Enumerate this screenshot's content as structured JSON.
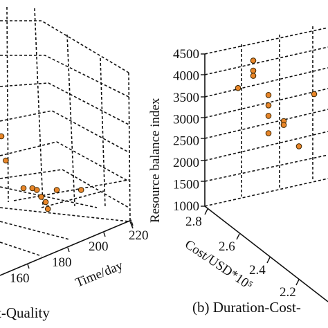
{
  "chart_data": [
    {
      "type": "scatter",
      "subtitle": "t-Quality",
      "xlabel": "Time/day",
      "x_ticks": [
        "160",
        "180",
        "200",
        "220"
      ],
      "points": [
        {
          "x": 150,
          "z": 0.42
        },
        {
          "x": 152,
          "z": 0.28
        },
        {
          "x": 160,
          "z": 0.12
        },
        {
          "x": 164,
          "z": 0.12
        },
        {
          "x": 166,
          "z": 0.11
        },
        {
          "x": 175,
          "z": 0.11
        },
        {
          "x": 186,
          "z": 0.11
        },
        {
          "x": 168,
          "z": 0.07
        },
        {
          "x": 170,
          "z": 0.04
        },
        {
          "x": 171,
          "z": 0.0
        }
      ],
      "grid": true
    },
    {
      "type": "scatter",
      "subtitle": "(b) Duration-Cost-",
      "zlabel": "Resource balance index",
      "z_ticks": [
        "1000",
        "1500",
        "2000",
        "2500",
        "3000",
        "3500",
        "4000",
        "4500"
      ],
      "zlim": [
        1000,
        4500
      ],
      "ylabel": "Cost/USD*10⁵",
      "y_ticks": [
        "2.8",
        "2.6",
        "2.4",
        "2.2"
      ],
      "points": [
        {
          "y": 2.5,
          "z": 4570
        },
        {
          "y": 2.5,
          "z": 4340
        },
        {
          "y": 2.5,
          "z": 4220
        },
        {
          "y": 2.6,
          "z": 3940
        },
        {
          "y": 2.4,
          "z": 3780
        },
        {
          "y": 2.4,
          "z": 3540
        },
        {
          "y": 2.4,
          "z": 3300
        },
        {
          "y": 2.3,
          "z": 3180
        },
        {
          "y": 2.3,
          "z": 3090
        },
        {
          "y": 2.4,
          "z": 2900
        },
        {
          "y": 2.2,
          "z": 2600
        },
        {
          "y": 2.1,
          "z": 3800
        }
      ],
      "grid": true
    }
  ]
}
